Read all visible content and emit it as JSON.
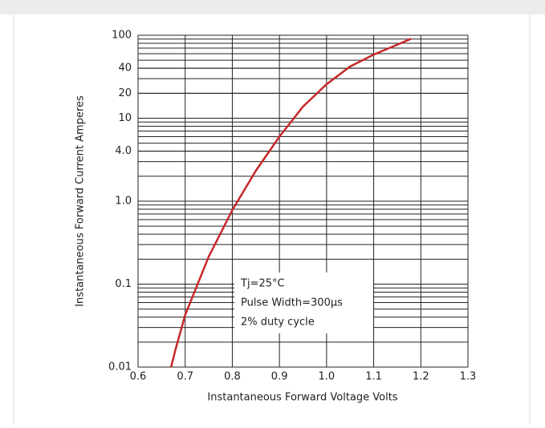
{
  "chart_data": {
    "type": "line",
    "x": [
      0.67,
      0.68,
      0.7,
      0.75,
      0.8,
      0.85,
      0.9,
      0.95,
      1.0,
      1.05,
      1.1,
      1.18
    ],
    "values": [
      0.01,
      0.0167,
      0.0425,
      0.215,
      0.78,
      2.33,
      6.0,
      13.8,
      25.7,
      42,
      58.5,
      91
    ],
    "color": "#c62828",
    "xlabel": "Instantaneous Forward Voltage Volts",
    "ylabel": "Instantaneous Forward Current Amperes",
    "xlim": [
      0.6,
      1.3
    ],
    "xticks": [
      0.6,
      0.7,
      0.8,
      0.9,
      {
        "value": 1.0,
        "label": "1.0"
      },
      1.1,
      1.2,
      1.3
    ],
    "ylim": [
      0.01,
      100
    ],
    "yticks": [
      0.01,
      0.1,
      {
        "value": 1,
        "label": "1.0"
      },
      {
        "value": 4,
        "label": "4.0"
      },
      10,
      20,
      40,
      100
    ],
    "log_y": true,
    "grid": true,
    "minor_grid": true,
    "annotations": [
      "Tj=25°C",
      "Pulse Width=300μs",
      "2% duty cycle"
    ]
  }
}
